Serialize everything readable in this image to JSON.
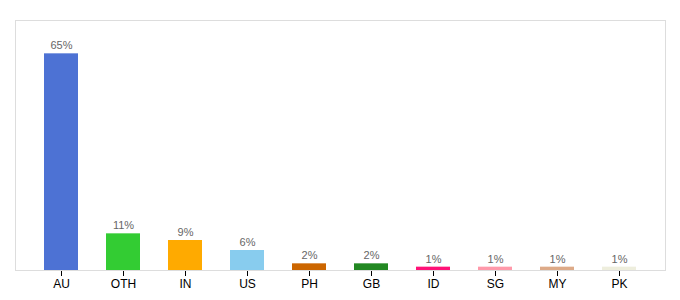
{
  "chart_data": {
    "type": "bar",
    "categories": [
      "AU",
      "OTH",
      "IN",
      "US",
      "PH",
      "GB",
      "ID",
      "SG",
      "MY",
      "PK"
    ],
    "values": [
      65,
      11,
      9,
      6,
      2,
      2,
      1,
      1,
      1,
      1
    ],
    "value_labels": [
      "65%",
      "11%",
      "9%",
      "6%",
      "2%",
      "2%",
      "1%",
      "1%",
      "1%",
      "1%"
    ],
    "colors": [
      "#4d72d4",
      "#33cc33",
      "#ffaa00",
      "#88ccee",
      "#cc6600",
      "#228822",
      "#ff1177",
      "#ff99aa",
      "#ddaa88",
      "#eeeedd"
    ],
    "ylim": [
      0,
      75
    ],
    "data_labels": true,
    "tick_labels": "x"
  }
}
